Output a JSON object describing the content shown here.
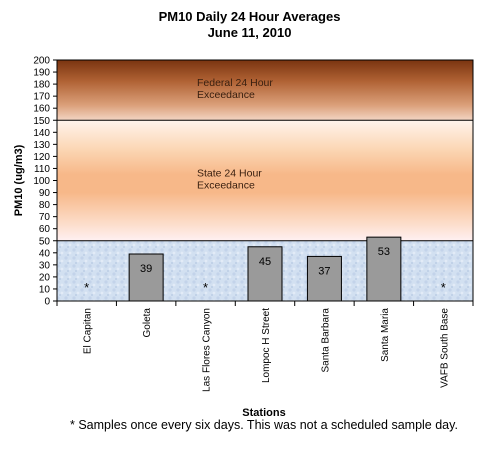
{
  "chart_data": {
    "type": "bar",
    "title": "PM10 Daily 24 Hour Averages",
    "subtitle": "June 11, 2010",
    "xlabel": "Stations",
    "ylabel": "PM10 (ug/m3)",
    "ylim": [
      0,
      200
    ],
    "ytick_step": 10,
    "categories": [
      "El Capitan",
      "Goleta",
      "Las Flores Canyon",
      "Lompoc H Street",
      "Santa Barbara",
      "Santa Maria",
      "VAFB South Base"
    ],
    "values": [
      null,
      39,
      null,
      45,
      37,
      53,
      null
    ],
    "bar_labels": [
      "*",
      "39",
      "*",
      "45",
      "37",
      "53",
      "*"
    ],
    "bands": [
      {
        "label_line1": "Federal 24 Hour",
        "label_line2": "Exceedance",
        "from": 150,
        "to": 200
      },
      {
        "label_line1": "State 24 Hour",
        "label_line2": "Exceedance",
        "from": 50,
        "to": 150
      },
      {
        "label_line1": "",
        "label_line2": "",
        "from": 0,
        "to": 50
      }
    ],
    "bar_color": "#9a9a9a",
    "grid": false,
    "legend": "none"
  },
  "footnote": "* Samples once every six days.  This was not a scheduled sample day."
}
